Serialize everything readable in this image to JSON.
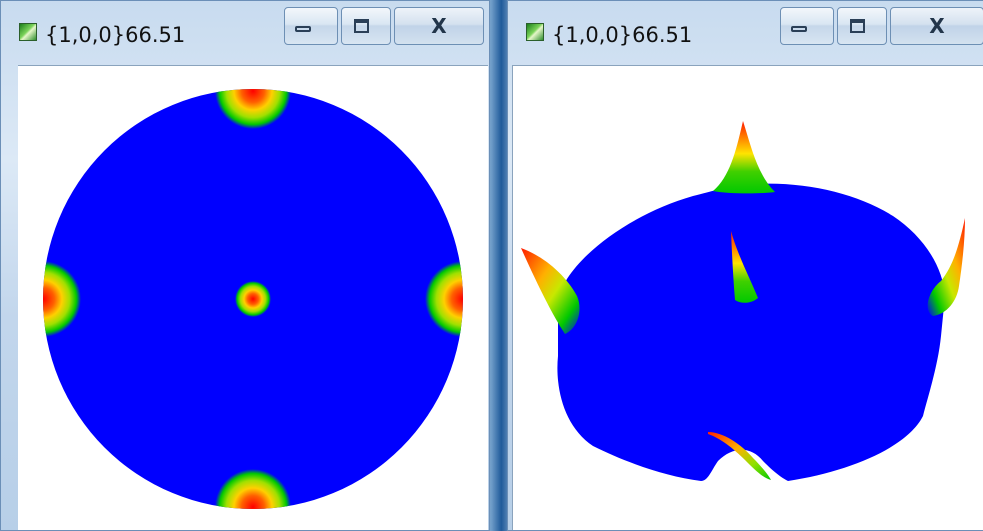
{
  "windows": [
    {
      "title": "{1,0,0}66.51",
      "controls": {
        "minimize": "minimize",
        "maximize": "maximize",
        "close": "X"
      }
    },
    {
      "title": "{1,0,0}66.51",
      "controls": {
        "minimize": "minimize",
        "maximize": "maximize",
        "close": "X"
      }
    }
  ],
  "colors": {
    "figure_background": "#0000ff",
    "peak_high": "#ff0000",
    "peak_mid": "#ffff00",
    "peak_low": "#00c800"
  },
  "icons": [
    "app-icon",
    "minimize-icon",
    "maximize-icon",
    "close-icon"
  ]
}
